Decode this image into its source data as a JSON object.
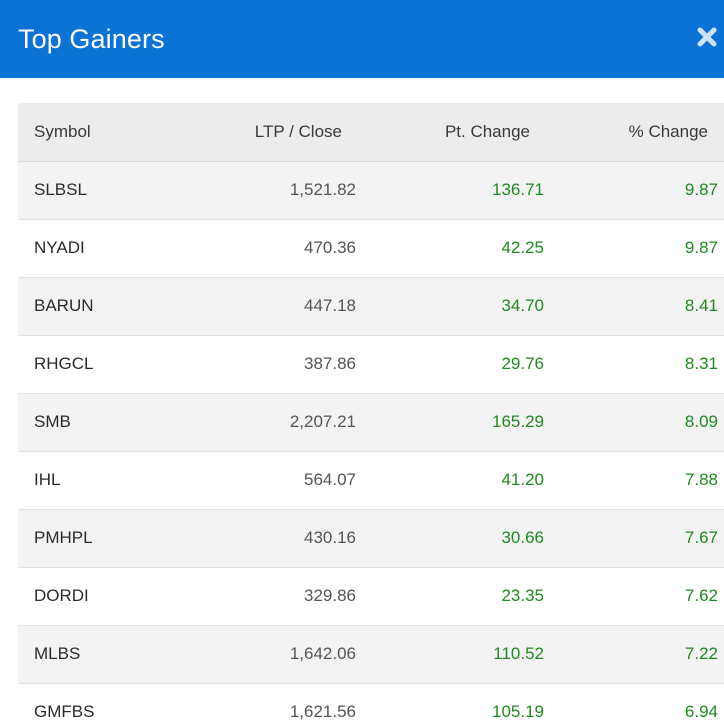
{
  "modal": {
    "title": "Top Gainers",
    "close_icon": "close-x-icon",
    "header_color": "#0b73d6"
  },
  "table": {
    "headers": {
      "symbol": "Symbol",
      "ltp": "LTP / Close",
      "pt_change": "Pt. Change",
      "pct_change": "% Change"
    },
    "rows": [
      {
        "symbol": "SLBSL",
        "ltp": "1,521.82",
        "pt_change": "136.71",
        "pct_change": "9.87"
      },
      {
        "symbol": "NYADI",
        "ltp": "470.36",
        "pt_change": "42.25",
        "pct_change": "9.87"
      },
      {
        "symbol": "BARUN",
        "ltp": "447.18",
        "pt_change": "34.70",
        "pct_change": "8.41"
      },
      {
        "symbol": "RHGCL",
        "ltp": "387.86",
        "pt_change": "29.76",
        "pct_change": "8.31"
      },
      {
        "symbol": "SMB",
        "ltp": "2,207.21",
        "pt_change": "165.29",
        "pct_change": "8.09"
      },
      {
        "symbol": "IHL",
        "ltp": "564.07",
        "pt_change": "41.20",
        "pct_change": "7.88"
      },
      {
        "symbol": "PMHPL",
        "ltp": "430.16",
        "pt_change": "30.66",
        "pct_change": "7.67"
      },
      {
        "symbol": "DORDI",
        "ltp": "329.86",
        "pt_change": "23.35",
        "pct_change": "7.62"
      },
      {
        "symbol": "MLBS",
        "ltp": "1,642.06",
        "pt_change": "110.52",
        "pct_change": "7.22"
      },
      {
        "symbol": "GMFBS",
        "ltp": "1,621.56",
        "pt_change": "105.19",
        "pct_change": "6.94"
      }
    ],
    "gain_color": "#1f8a1f"
  }
}
